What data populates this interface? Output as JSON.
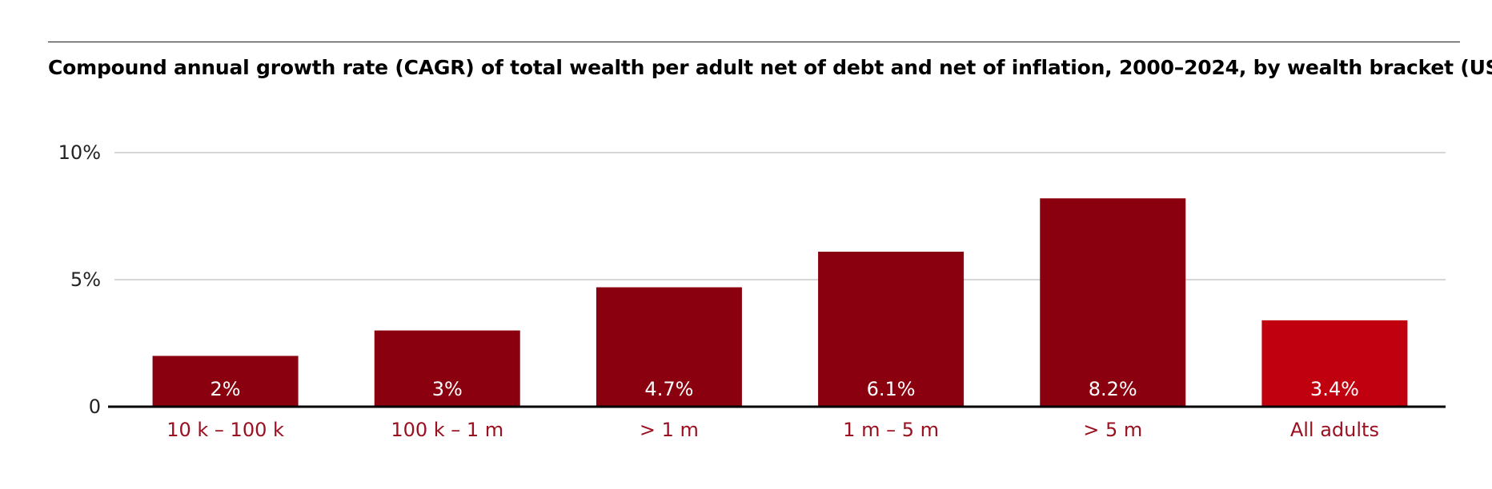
{
  "chart_data": {
    "type": "bar",
    "title": "Compound annual growth rate (CAGR) of total wealth per adult net of debt and net of inflation, 2000–2024, by wealth bracket (USD)",
    "categories": [
      "10 k – 100 k",
      "100 k – 1 m",
      "> 1 m",
      "1 m – 5 m",
      "> 5 m",
      "All adults"
    ],
    "values": [
      2,
      3,
      4.7,
      6.1,
      8.2,
      3.4
    ],
    "data_labels": [
      "2%",
      "3%",
      "4.7%",
      "6.1%",
      "8.2%",
      "3.4%"
    ],
    "yticks": [
      {
        "value": 0,
        "label": "0"
      },
      {
        "value": 5,
        "label": "5%"
      },
      {
        "value": 10,
        "label": "10%"
      }
    ],
    "ylim": [
      0,
      10
    ],
    "grid": true,
    "colors": {
      "bar": "#8b000e",
      "highlight_bar": "#c0000f",
      "label": "#9b1020",
      "grid": "#c8c8c8",
      "axis": "#000000"
    },
    "highlight_index": 5
  }
}
